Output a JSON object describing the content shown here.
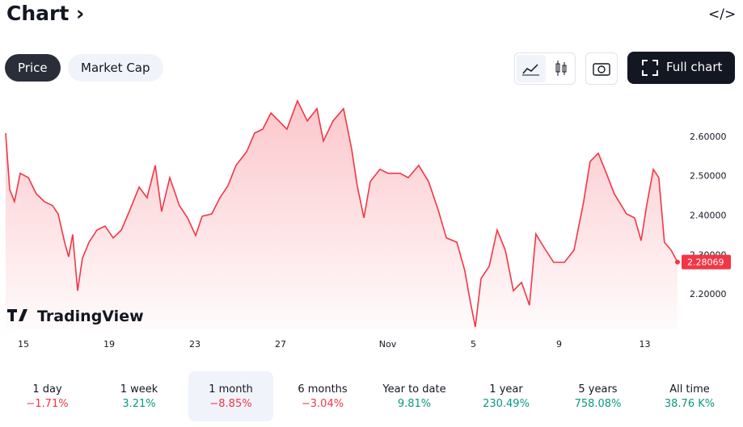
{
  "header": {
    "title": "Chart",
    "tabs": [
      "Price",
      "Market Cap"
    ],
    "active_tab": 0,
    "full_chart": "Full chart"
  },
  "chart_data": {
    "type": "line",
    "color": "#f23645",
    "x": [
      -0.83,
      -0.64,
      -0.42,
      -0.15,
      0.23,
      0.6,
      0.98,
      1.36,
      1.62,
      1.92,
      2.11,
      2.3,
      2.53,
      2.75,
      3.06,
      3.43,
      3.81,
      4.19,
      4.57,
      4.94,
      5.4,
      5.77,
      6.15,
      6.45,
      6.83,
      7.28,
      7.66,
      8.04,
      8.34,
      8.79,
      9.17,
      9.55,
      9.92,
      10.42,
      10.79,
      11.17,
      11.55,
      11.92,
      12.3,
      12.79,
      13.25,
      13.7,
      14.0,
      14.45,
      14.94,
      15.32,
      15.58,
      15.89,
      16.19,
      16.64,
      17.02,
      17.58,
      17.96,
      18.45,
      18.91,
      19.36,
      19.74,
      20.23,
      20.6,
      20.87,
      21.09,
      21.36,
      21.74,
      22.11,
      22.49,
      22.87,
      23.25,
      23.62,
      23.92,
      24.26,
      24.75,
      25.25,
      25.7,
      26.15,
      26.45,
      26.83,
      27.21,
      27.58,
      28.15,
      28.53,
      28.83,
      29.09,
      29.4,
      29.66,
      29.92,
      30.23,
      30.53
    ],
    "values": [
      2.608,
      2.465,
      2.434,
      2.506,
      2.495,
      2.454,
      2.434,
      2.424,
      2.403,
      2.331,
      2.294,
      2.351,
      2.208,
      2.29,
      2.331,
      2.362,
      2.372,
      2.342,
      2.362,
      2.409,
      2.471,
      2.444,
      2.526,
      2.409,
      2.495,
      2.424,
      2.393,
      2.348,
      2.397,
      2.403,
      2.444,
      2.475,
      2.526,
      2.561,
      2.608,
      2.618,
      2.659,
      2.639,
      2.618,
      2.69,
      2.639,
      2.67,
      2.588,
      2.639,
      2.67,
      2.567,
      2.475,
      2.393,
      2.485,
      2.516,
      2.506,
      2.506,
      2.495,
      2.526,
      2.485,
      2.413,
      2.342,
      2.331,
      2.259,
      2.177,
      2.116,
      2.239,
      2.27,
      2.362,
      2.311,
      2.208,
      2.229,
      2.171,
      2.352,
      2.321,
      2.28,
      2.28,
      2.311,
      2.434,
      2.536,
      2.557,
      2.506,
      2.454,
      2.403,
      2.393,
      2.335,
      2.424,
      2.516,
      2.495,
      2.331,
      2.311,
      2.28069
    ],
    "xlim": [
      -0.83,
      30.53
    ],
    "xticks": [
      {
        "value": 0,
        "label": "15"
      },
      {
        "value": 4,
        "label": "19"
      },
      {
        "value": 8,
        "label": "23"
      },
      {
        "value": 12,
        "label": "27"
      },
      {
        "value": 17,
        "label": "Nov"
      },
      {
        "value": 21,
        "label": "5"
      },
      {
        "value": 25,
        "label": "9"
      },
      {
        "value": 29,
        "label": "13"
      }
    ],
    "ylim": [
      2.11,
      2.7
    ],
    "yticks": [
      {
        "value": 2.2,
        "label": "2.20000"
      },
      {
        "value": 2.3,
        "label": "2.30000"
      },
      {
        "value": 2.4,
        "label": "2.40000"
      },
      {
        "value": 2.5,
        "label": "2.50000"
      },
      {
        "value": 2.6,
        "label": "2.60000"
      }
    ],
    "current_price": {
      "value": 2.28069,
      "label": "2.28069"
    },
    "watermark": "TradingView"
  },
  "periods": [
    {
      "name": "1 day",
      "change": "−1.71%",
      "color": "#f23645"
    },
    {
      "name": "1 week",
      "change": "3.21%",
      "color": "#089981"
    },
    {
      "name": "1 month",
      "change": "−8.85%",
      "color": "#f23645"
    },
    {
      "name": "6 months",
      "change": "−3.04%",
      "color": "#f23645"
    },
    {
      "name": "Year to date",
      "change": "9.81%",
      "color": "#089981"
    },
    {
      "name": "1 year",
      "change": "230.49%",
      "color": "#089981"
    },
    {
      "name": "5 years",
      "change": "758.08%",
      "color": "#089981"
    },
    {
      "name": "All time",
      "change": "38.76 K%",
      "color": "#089981"
    }
  ],
  "active_period": 2
}
